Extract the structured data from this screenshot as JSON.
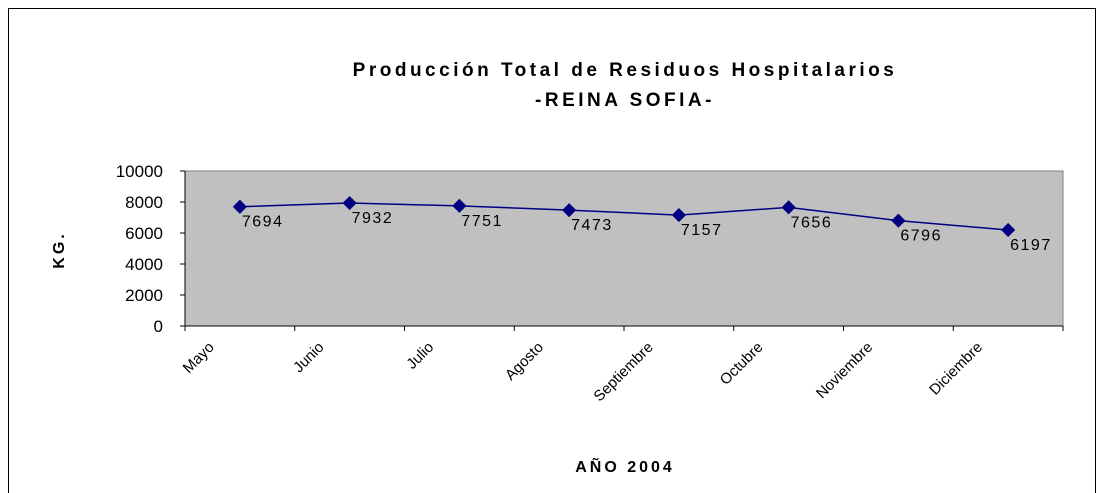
{
  "chart_data": {
    "type": "line",
    "title": "Producción Total de Residuos Hospitalarios",
    "subtitle": "-REINA SOFIA-",
    "x_label": "AÑO 2004",
    "y_label": "KG.",
    "categories": [
      "Mayo",
      "Junio",
      "Julio",
      "Agosto",
      "Septiembre",
      "Octubre",
      "Noviembre",
      "Diciembre"
    ],
    "series": [
      {
        "name": "KG.",
        "color": "#000080",
        "values": [
          7694,
          7932,
          7751,
          7473,
          7157,
          7656,
          6796,
          6197
        ]
      }
    ],
    "ylim": [
      0,
      10000
    ],
    "yticks": [
      0,
      2000,
      4000,
      6000,
      8000,
      10000
    ],
    "plot_background": "#c0c0c0",
    "grid": false,
    "legend": false
  }
}
